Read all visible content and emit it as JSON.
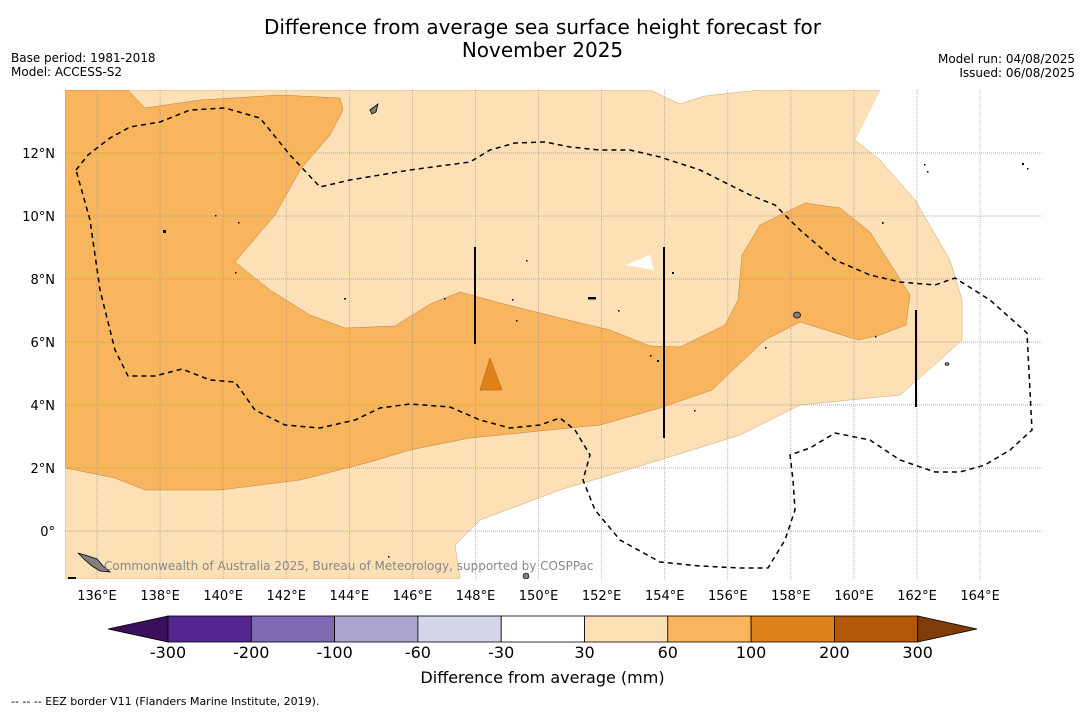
{
  "title_line1": "Difference from average sea surface height forecast for",
  "title_line2": "November 2025",
  "meta_left": [
    "Base period: 1981-2018",
    "Model: ACCESS-S2"
  ],
  "meta_right": [
    "Model run: 04/08/2025",
    "Issued: 06/08/2025"
  ],
  "x_ticks": [
    "136°E",
    "138°E",
    "140°E",
    "142°E",
    "144°E",
    "146°E",
    "148°E",
    "150°E",
    "152°E",
    "154°E",
    "156°E",
    "158°E",
    "160°E",
    "162°E",
    "164°E"
  ],
  "y_ticks": [
    "12°N",
    "10°N",
    "8°N",
    "6°N",
    "4°N",
    "2°N",
    "0°"
  ],
  "watermark": "Commonwealth of Australia 2025, Bureau of Meteorology, supported by COSPPac",
  "colorbar": {
    "labels": [
      "-300",
      "-200",
      "-100",
      "-60",
      "-30",
      "30",
      "60",
      "100",
      "200",
      "300"
    ],
    "colors": [
      "#3a0f5b",
      "#54278f",
      "#7d6ab0",
      "#aaa4d0",
      "#d6d6ea",
      "#ffffff",
      "#fde0b5",
      "#f9b45e",
      "#e0821a",
      "#b35806",
      "#7f3b08"
    ],
    "title": "Difference from average (mm)"
  },
  "footnote": "--  --  -- EEZ border V11 (Flanders Marine Institute, 2019).",
  "map_colors": {
    "light": "#fde0b5",
    "medium": "#f9b45e",
    "dark": "#e0821a",
    "white": "#ffffff",
    "land": "#808080"
  }
}
